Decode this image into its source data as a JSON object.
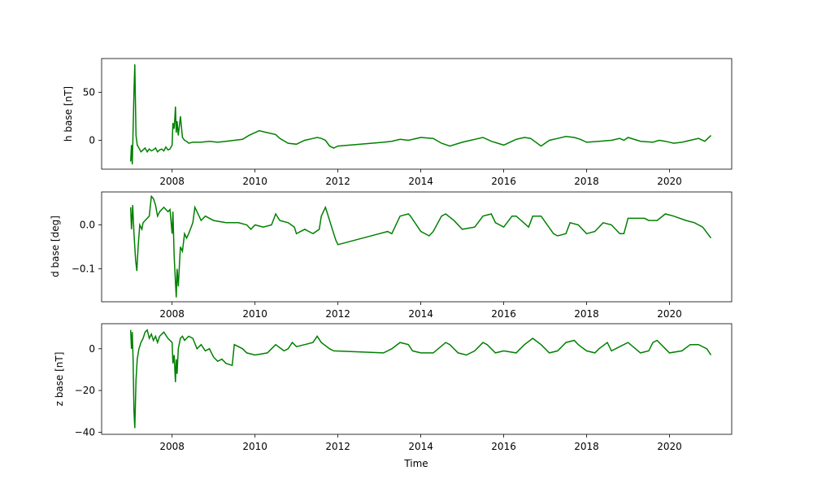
{
  "chart_data": [
    {
      "type": "line",
      "ylabel": "h base [nT]",
      "xlabel": "",
      "xlim": [
        2006.3,
        2021.5
      ],
      "ylim": [
        -30,
        85
      ],
      "xticks": [
        2008,
        2010,
        2012,
        2014,
        2016,
        2018,
        2020
      ],
      "xtick_labels": [
        "2008",
        "2010",
        "2012",
        "2014",
        "2016",
        "2018",
        "2020"
      ],
      "yticks": [
        0,
        50
      ],
      "ytick_labels": [
        "0",
        "50"
      ],
      "color": "#008000",
      "series": [
        {
          "x": [
            2007.0,
            2007.02,
            2007.04,
            2007.06,
            2007.08,
            2007.1,
            2007.13,
            2007.16,
            2007.2,
            2007.25,
            2007.3,
            2007.35,
            2007.4,
            2007.45,
            2007.5,
            2007.55,
            2007.6,
            2007.65,
            2007.7,
            2007.75,
            2007.8,
            2007.85,
            2007.9,
            2007.95,
            2008.0,
            2008.02,
            2008.05,
            2008.07,
            2008.08,
            2008.1,
            2008.12,
            2008.15,
            2008.2,
            2008.25,
            2008.3,
            2008.35,
            2008.4,
            2008.5,
            2008.7,
            2008.9,
            2009.1,
            2009.3,
            2009.5,
            2009.7,
            2009.85,
            2010.0,
            2010.1,
            2010.3,
            2010.5,
            2010.6,
            2010.8,
            2011.0,
            2011.2,
            2011.4,
            2011.5,
            2011.6,
            2011.7,
            2011.8,
            2011.9,
            2012.0,
            2013.1,
            2013.3,
            2013.5,
            2013.7,
            2014.0,
            2014.3,
            2014.5,
            2014.7,
            2015.0,
            2015.2,
            2015.3,
            2015.5,
            2015.7,
            2016.0,
            2016.3,
            2016.5,
            2016.65,
            2016.9,
            2017.1,
            2017.3,
            2017.5,
            2017.7,
            2017.85,
            2018.0,
            2018.3,
            2018.6,
            2018.8,
            2018.9,
            2019.0,
            2019.3,
            2019.6,
            2019.75,
            2019.9,
            2020.1,
            2020.3,
            2020.5,
            2020.7,
            2020.85,
            2021.0
          ],
          "y": [
            -22,
            -5,
            -25,
            10,
            50,
            79,
            5,
            -5,
            -8,
            -12,
            -10,
            -8,
            -12,
            -9,
            -11,
            -10,
            -8,
            -12,
            -10,
            -9,
            -11,
            -7,
            -10,
            -9,
            -5,
            18,
            12,
            25,
            35,
            8,
            20,
            5,
            25,
            3,
            0,
            -1,
            -3,
            -2,
            -2,
            -1,
            -2,
            -1,
            0,
            1,
            5,
            8,
            10,
            8,
            6,
            2,
            -3,
            -4,
            0,
            2,
            3,
            2,
            0,
            -6,
            -8,
            -6,
            -2,
            -1,
            1,
            0,
            3,
            2,
            -3,
            -6,
            -2,
            0,
            1,
            3,
            -1,
            -5,
            1,
            3,
            2,
            -6,
            0,
            2,
            4,
            3,
            1,
            -2,
            -1,
            0,
            2,
            0,
            3,
            -1,
            -2,
            0,
            -1,
            -3,
            -2,
            0,
            2,
            -1,
            5
          ]
        }
      ]
    },
    {
      "type": "line",
      "ylabel": "d base [deg]",
      "xlabel": "",
      "xlim": [
        2006.3,
        2021.5
      ],
      "ylim": [
        -0.175,
        0.075
      ],
      "xticks": [
        2008,
        2010,
        2012,
        2014,
        2016,
        2018,
        2020
      ],
      "xtick_labels": [
        "2008",
        "2010",
        "2012",
        "2014",
        "2016",
        "2018",
        "2020"
      ],
      "yticks": [
        0.0,
        -0.1
      ],
      "ytick_labels": [
        "0.0",
        "−0.1"
      ],
      "color": "#008000",
      "series": [
        {
          "x": [
            2007.0,
            2007.02,
            2007.05,
            2007.08,
            2007.12,
            2007.15,
            2007.18,
            2007.22,
            2007.27,
            2007.3,
            2007.35,
            2007.45,
            2007.5,
            2007.55,
            2007.6,
            2007.65,
            2007.7,
            2007.8,
            2007.9,
            2007.95,
            2008.0,
            2008.02,
            2008.05,
            2008.08,
            2008.1,
            2008.12,
            2008.15,
            2008.2,
            2008.25,
            2008.3,
            2008.35,
            2008.4,
            2008.5,
            2008.55,
            2008.6,
            2008.7,
            2008.8,
            2009.0,
            2009.3,
            2009.6,
            2009.8,
            2009.9,
            2010.0,
            2010.2,
            2010.4,
            2010.5,
            2010.6,
            2010.8,
            2010.95,
            2011.0,
            2011.2,
            2011.4,
            2011.55,
            2011.6,
            2011.7,
            2011.75,
            2011.9,
            2011.95,
            2012.0,
            2013.0,
            2013.2,
            2013.3,
            2013.5,
            2013.7,
            2013.75,
            2014.0,
            2014.2,
            2014.3,
            2014.5,
            2014.6,
            2014.8,
            2015.0,
            2015.3,
            2015.5,
            2015.7,
            2015.8,
            2016.0,
            2016.2,
            2016.3,
            2016.6,
            2016.7,
            2016.9,
            2017.2,
            2017.3,
            2017.5,
            2017.6,
            2017.8,
            2018.0,
            2018.2,
            2018.4,
            2018.6,
            2018.8,
            2018.9,
            2019.0,
            2019.4,
            2019.5,
            2019.7,
            2019.9,
            2020.1,
            2020.4,
            2020.6,
            2020.8,
            2021.0
          ],
          "y": [
            0.04,
            -0.01,
            0.045,
            -0.02,
            -0.08,
            -0.105,
            -0.05,
            0.0,
            -0.01,
            0.005,
            0.01,
            0.02,
            0.065,
            0.06,
            0.045,
            0.02,
            0.03,
            0.04,
            0.03,
            0.035,
            -0.02,
            0.03,
            -0.07,
            -0.13,
            -0.165,
            -0.1,
            -0.14,
            -0.05,
            -0.06,
            -0.02,
            -0.03,
            -0.02,
            0.005,
            0.04,
            0.03,
            0.01,
            0.02,
            0.01,
            0.005,
            0.005,
            0.0,
            -0.01,
            0.0,
            -0.005,
            0.0,
            0.025,
            0.01,
            0.005,
            -0.005,
            -0.02,
            -0.01,
            -0.02,
            -0.01,
            0.02,
            0.04,
            0.025,
            -0.02,
            -0.035,
            -0.045,
            -0.02,
            -0.015,
            -0.02,
            0.02,
            0.025,
            0.02,
            -0.015,
            -0.025,
            -0.015,
            0.02,
            0.025,
            0.01,
            -0.01,
            -0.005,
            0.02,
            0.025,
            0.005,
            -0.005,
            0.02,
            0.02,
            -0.005,
            0.02,
            0.02,
            -0.02,
            -0.025,
            -0.02,
            0.005,
            0.0,
            -0.02,
            -0.015,
            0.005,
            0.0,
            -0.02,
            -0.02,
            0.015,
            0.015,
            0.01,
            0.01,
            0.025,
            0.02,
            0.01,
            0.005,
            -0.005,
            -0.03
          ]
        }
      ]
    },
    {
      "type": "line",
      "ylabel": "z base [nT]",
      "xlabel": "Time",
      "xlim": [
        2006.3,
        2021.5
      ],
      "ylim": [
        -41,
        12
      ],
      "xticks": [
        2008,
        2010,
        2012,
        2014,
        2016,
        2018,
        2020
      ],
      "xtick_labels": [
        "2008",
        "2010",
        "2012",
        "2014",
        "2016",
        "2018",
        "2020"
      ],
      "yticks": [
        0,
        -20,
        -40
      ],
      "ytick_labels": [
        "0",
        "−20",
        "−40"
      ],
      "color": "#008000",
      "series": [
        {
          "x": [
            2007.0,
            2007.02,
            2007.04,
            2007.06,
            2007.08,
            2007.1,
            2007.13,
            2007.16,
            2007.2,
            2007.25,
            2007.3,
            2007.35,
            2007.4,
            2007.45,
            2007.5,
            2007.55,
            2007.6,
            2007.65,
            2007.7,
            2007.8,
            2007.9,
            2008.0,
            2008.02,
            2008.05,
            2008.08,
            2008.1,
            2008.12,
            2008.15,
            2008.2,
            2008.25,
            2008.3,
            2008.4,
            2008.5,
            2008.6,
            2008.7,
            2008.8,
            2008.9,
            2009.0,
            2009.1,
            2009.2,
            2009.3,
            2009.45,
            2009.5,
            2009.7,
            2009.8,
            2010.0,
            2010.3,
            2010.4,
            2010.5,
            2010.7,
            2010.8,
            2010.9,
            2011.0,
            2011.2,
            2011.4,
            2011.5,
            2011.6,
            2011.8,
            2011.9,
            2013.1,
            2013.3,
            2013.5,
            2013.7,
            2013.8,
            2014.0,
            2014.3,
            2014.6,
            2014.7,
            2014.9,
            2015.1,
            2015.3,
            2015.5,
            2015.6,
            2015.8,
            2016.0,
            2016.3,
            2016.5,
            2016.7,
            2016.9,
            2017.1,
            2017.3,
            2017.5,
            2017.7,
            2017.8,
            2018.0,
            2018.2,
            2018.3,
            2018.5,
            2018.6,
            2018.8,
            2019.0,
            2019.3,
            2019.5,
            2019.6,
            2019.7,
            2019.9,
            2020.0,
            2020.3,
            2020.5,
            2020.7,
            2020.9,
            2021.0
          ],
          "y": [
            9,
            0,
            8,
            -5,
            -30,
            -38,
            -15,
            -5,
            0,
            3,
            5,
            8,
            9,
            5,
            7,
            4,
            6,
            3,
            6,
            8,
            5,
            3,
            -7,
            -3,
            -16,
            -5,
            -12,
            0,
            5,
            6,
            4,
            6,
            5,
            0,
            2,
            -1,
            0,
            -4,
            -6,
            -5,
            -7,
            -8,
            2,
            0,
            -2,
            -3,
            -2,
            0,
            2,
            -1,
            0,
            3,
            1,
            2,
            3,
            6,
            3,
            0,
            -1,
            -2,
            0,
            3,
            2,
            -1,
            -2,
            -2,
            3,
            2,
            -2,
            -3,
            -1,
            3,
            2,
            -2,
            -1,
            -2,
            2,
            5,
            2,
            -2,
            -1,
            3,
            4,
            2,
            -1,
            -2,
            0,
            3,
            -1,
            1,
            3,
            -2,
            -1,
            3,
            4,
            0,
            -2,
            -1,
            2,
            2,
            0,
            -3
          ]
        }
      ]
    }
  ]
}
